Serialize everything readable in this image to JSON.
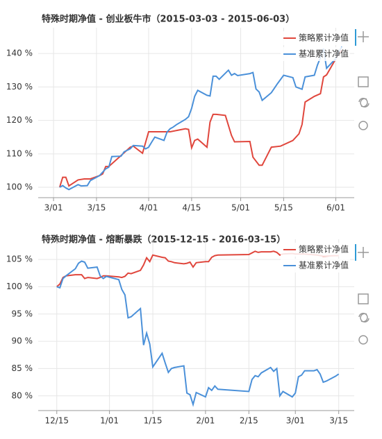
{
  "chart_data": [
    {
      "type": "line",
      "title": "特殊时期净值 - 创业板牛市（2015-03-03 - 2015-06-03）",
      "xlim": [
        "2/24",
        "6/07"
      ],
      "xticks": [
        "3/01",
        "3/15",
        "4/01",
        "4/15",
        "5/01",
        "5/15",
        "6/01"
      ],
      "ylim": [
        96.9,
        147.7
      ],
      "yticks": [
        {
          "value": 100,
          "label": "100 %"
        },
        {
          "value": 110,
          "label": "110 %"
        },
        {
          "value": 120,
          "label": "120 %"
        },
        {
          "value": 130,
          "label": "130 %"
        },
        {
          "value": 140,
          "label": "140 %"
        }
      ],
      "grid": true,
      "legend": "top-right",
      "series": [
        {
          "name": "策略累计净值",
          "color": "#e0463c",
          "x": [
            "3/03",
            "3/04",
            "3/05",
            "3/06",
            "3/09",
            "3/11",
            "3/13",
            "3/16",
            "3/17",
            "3/18",
            "3/19",
            "3/23",
            "3/26",
            "3/27",
            "3/30",
            "4/01",
            "4/08",
            "4/13",
            "4/14",
            "4/15",
            "4/16",
            "4/17",
            "4/20",
            "4/21",
            "4/22",
            "4/23",
            "4/26",
            "4/28",
            "4/29",
            "5/04",
            "5/05",
            "5/07",
            "5/08",
            "5/11",
            "5/14",
            "5/18",
            "5/20",
            "5/21",
            "5/22",
            "5/25",
            "5/27",
            "5/28",
            "5/29",
            "6/02",
            "6/03"
          ],
          "values": [
            100,
            103,
            103,
            100.4,
            102.2,
            102.5,
            102.5,
            103.5,
            104,
            106.2,
            106.2,
            109.5,
            112,
            112.3,
            110.2,
            116.6,
            116.6,
            117.5,
            117.3,
            111.8,
            114,
            114.4,
            112,
            119.5,
            121.8,
            121.8,
            121.5,
            115.5,
            113.6,
            113.7,
            109,
            106.6,
            106.6,
            112,
            112.3,
            114,
            116,
            118.8,
            125.5,
            127.2,
            128,
            133,
            133.6,
            140,
            141
          ]
        },
        {
          "name": "基准累计净值",
          "color": "#4a90d9",
          "x": [
            "3/03",
            "3/04",
            "3/05",
            "3/06",
            "3/09",
            "3/10",
            "3/12",
            "3/13",
            "3/16",
            "3/18",
            "3/19",
            "3/20",
            "3/23",
            "3/24",
            "3/26",
            "3/27",
            "3/30",
            "3/31",
            "4/01",
            "4/02",
            "4/03",
            "4/06",
            "4/07",
            "4/08",
            "4/09",
            "4/10",
            "4/13",
            "4/14",
            "4/15",
            "4/16",
            "4/17",
            "4/20",
            "4/21",
            "4/22",
            "4/23",
            "4/24",
            "4/27",
            "4/28",
            "4/29",
            "4/30",
            "5/04",
            "5/05",
            "5/06",
            "5/07",
            "5/08",
            "5/11",
            "5/13",
            "5/15",
            "5/18",
            "5/19",
            "5/21",
            "5/22",
            "5/25",
            "5/26",
            "5/27",
            "5/28",
            "5/29",
            "6/01",
            "6/02",
            "6/03"
          ],
          "values": [
            100,
            100.5,
            99.8,
            99.3,
            100.8,
            100.4,
            100.5,
            102,
            103.5,
            105.5,
            106,
            109.2,
            109.3,
            110.6,
            111.5,
            112.5,
            112.3,
            111.5,
            112,
            113.5,
            115,
            114,
            116.5,
            117.5,
            118,
            118.7,
            120.3,
            121.1,
            123.6,
            127.2,
            129,
            127.5,
            127.3,
            133.2,
            133.2,
            132.3,
            135,
            133.5,
            134,
            133.4,
            134,
            134.3,
            129.4,
            128.5,
            126,
            128.3,
            131,
            133.5,
            132.8,
            130,
            129.3,
            133,
            133.5,
            136.5,
            138.8,
            141.5,
            135.6,
            138.5,
            140.5,
            142
          ]
        }
      ]
    },
    {
      "type": "line",
      "title": "特殊时期净值 - 熔断暴跌（2015-12-15 - 2016-03-15）",
      "xlim": [
        "12/09",
        "3/20"
      ],
      "xticks": [
        "12/15",
        "1/01",
        "1/15",
        "2/01",
        "2/15",
        "3/01",
        "3/15"
      ],
      "ylim": [
        77.3,
        108.7
      ],
      "yticks": [
        {
          "value": 80,
          "label": "80 %"
        },
        {
          "value": 85,
          "label": "85 %"
        },
        {
          "value": 90,
          "label": "90 %"
        },
        {
          "value": 95,
          "label": "95 %"
        },
        {
          "value": 100,
          "label": "100 %"
        },
        {
          "value": 105,
          "label": "105 %"
        }
      ],
      "grid": true,
      "legend": "top-right",
      "series": [
        {
          "name": "策略累计净值",
          "color": "#e0463c",
          "x": [
            "12/15",
            "12/16",
            "12/17",
            "12/18",
            "12/21",
            "12/22",
            "12/23",
            "12/24",
            "12/25",
            "12/28",
            "12/29",
            "12/30",
            "12/31",
            "1/04",
            "1/05",
            "1/06",
            "1/07",
            "1/08",
            "1/11",
            "1/12",
            "1/13",
            "1/14",
            "1/15",
            "1/18",
            "1/19",
            "1/20",
            "1/21",
            "1/22",
            "1/25",
            "1/26",
            "1/27",
            "1/28",
            "1/29",
            "2/01",
            "2/02",
            "2/03",
            "2/04",
            "2/05",
            "2/15",
            "2/16",
            "2/17",
            "2/18",
            "2/19",
            "2/22",
            "2/23",
            "2/24",
            "2/25",
            "2/26",
            "2/29",
            "3/01",
            "3/02",
            "3/04",
            "3/08",
            "3/10",
            "3/14",
            "3/15"
          ],
          "values": [
            100,
            100.5,
            101.7,
            102,
            102.2,
            102.2,
            102.2,
            101.5,
            101.7,
            101.5,
            101.7,
            102,
            102,
            101.8,
            101.7,
            101.9,
            102.5,
            102.4,
            103,
            104,
            105.3,
            104.6,
            105.8,
            105.4,
            105.3,
            104.7,
            104.6,
            104.4,
            104.2,
            104.3,
            104.5,
            103.6,
            104.4,
            104.6,
            104.6,
            105.4,
            105.7,
            105.8,
            105.9,
            106.2,
            106.5,
            106.3,
            106.4,
            106.4,
            106.5,
            106.3,
            105.8,
            106,
            106.1,
            106,
            106,
            106,
            105.8,
            105.6,
            105.7,
            105.7
          ]
        },
        {
          "name": "基准累计净值",
          "color": "#4a90d9",
          "x": [
            "12/15",
            "12/16",
            "12/17",
            "12/18",
            "12/21",
            "12/22",
            "12/23",
            "12/24",
            "12/25",
            "12/28",
            "12/29",
            "12/30",
            "12/31",
            "1/04",
            "1/05",
            "1/06",
            "1/07",
            "1/08",
            "1/11",
            "1/12",
            "1/13",
            "1/14",
            "1/15",
            "1/18",
            "1/19",
            "1/20",
            "1/21",
            "1/22",
            "1/25",
            "1/26",
            "1/27",
            "1/28",
            "1/29",
            "2/01",
            "2/02",
            "2/03",
            "2/04",
            "2/05",
            "2/15",
            "2/16",
            "2/17",
            "2/18",
            "2/19",
            "2/22",
            "2/23",
            "2/24",
            "2/25",
            "2/26",
            "2/29",
            "3/01",
            "3/02",
            "3/03",
            "3/04",
            "3/07",
            "3/08",
            "3/09",
            "3/10",
            "3/11",
            "3/14",
            "3/15"
          ],
          "values": [
            100,
            99.8,
            101.5,
            102,
            103.3,
            104.3,
            104.7,
            104.5,
            103.4,
            103.6,
            102,
            101.5,
            101.9,
            101.3,
            99.5,
            98.5,
            94.3,
            94.5,
            96,
            89.3,
            91.5,
            89.5,
            85.3,
            87.8,
            86,
            84.3,
            85,
            85.2,
            85.5,
            80.5,
            80.2,
            78.4,
            80.6,
            79.8,
            81.5,
            81,
            81.8,
            81.2,
            80.8,
            83,
            83.7,
            83.5,
            84.2,
            85.2,
            84.5,
            85,
            80,
            80.8,
            79.8,
            80.5,
            83.5,
            83.8,
            84.6,
            84.6,
            84.8,
            84,
            82.5,
            82.7,
            83.6,
            84
          ]
        }
      ]
    }
  ]
}
